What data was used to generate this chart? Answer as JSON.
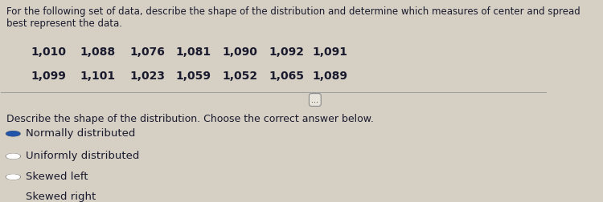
{
  "title": "For the following set of data, describe the shape of the distribution and determine which measures of center and spread best represent the data.",
  "data_row1": [
    "1,010",
    "1,088",
    "1,076",
    "1,081",
    "1,090",
    "1,092",
    "1,091"
  ],
  "data_row2": [
    "1,099",
    "1,101",
    "1,023",
    "1,059",
    "1,052",
    "1,065",
    "1,089"
  ],
  "divider_label": "...",
  "question": "Describe the shape of the distribution. Choose the correct answer below.",
  "options": [
    "Normally distributed",
    "Uniformly distributed",
    "Skewed left",
    "Skewed right"
  ],
  "selected_index": 0,
  "bg_color": "#d6d0c4",
  "text_color": "#1a1a2e",
  "title_fontsize": 8.5,
  "data_fontsize": 10,
  "question_fontsize": 9,
  "option_fontsize": 9.5
}
